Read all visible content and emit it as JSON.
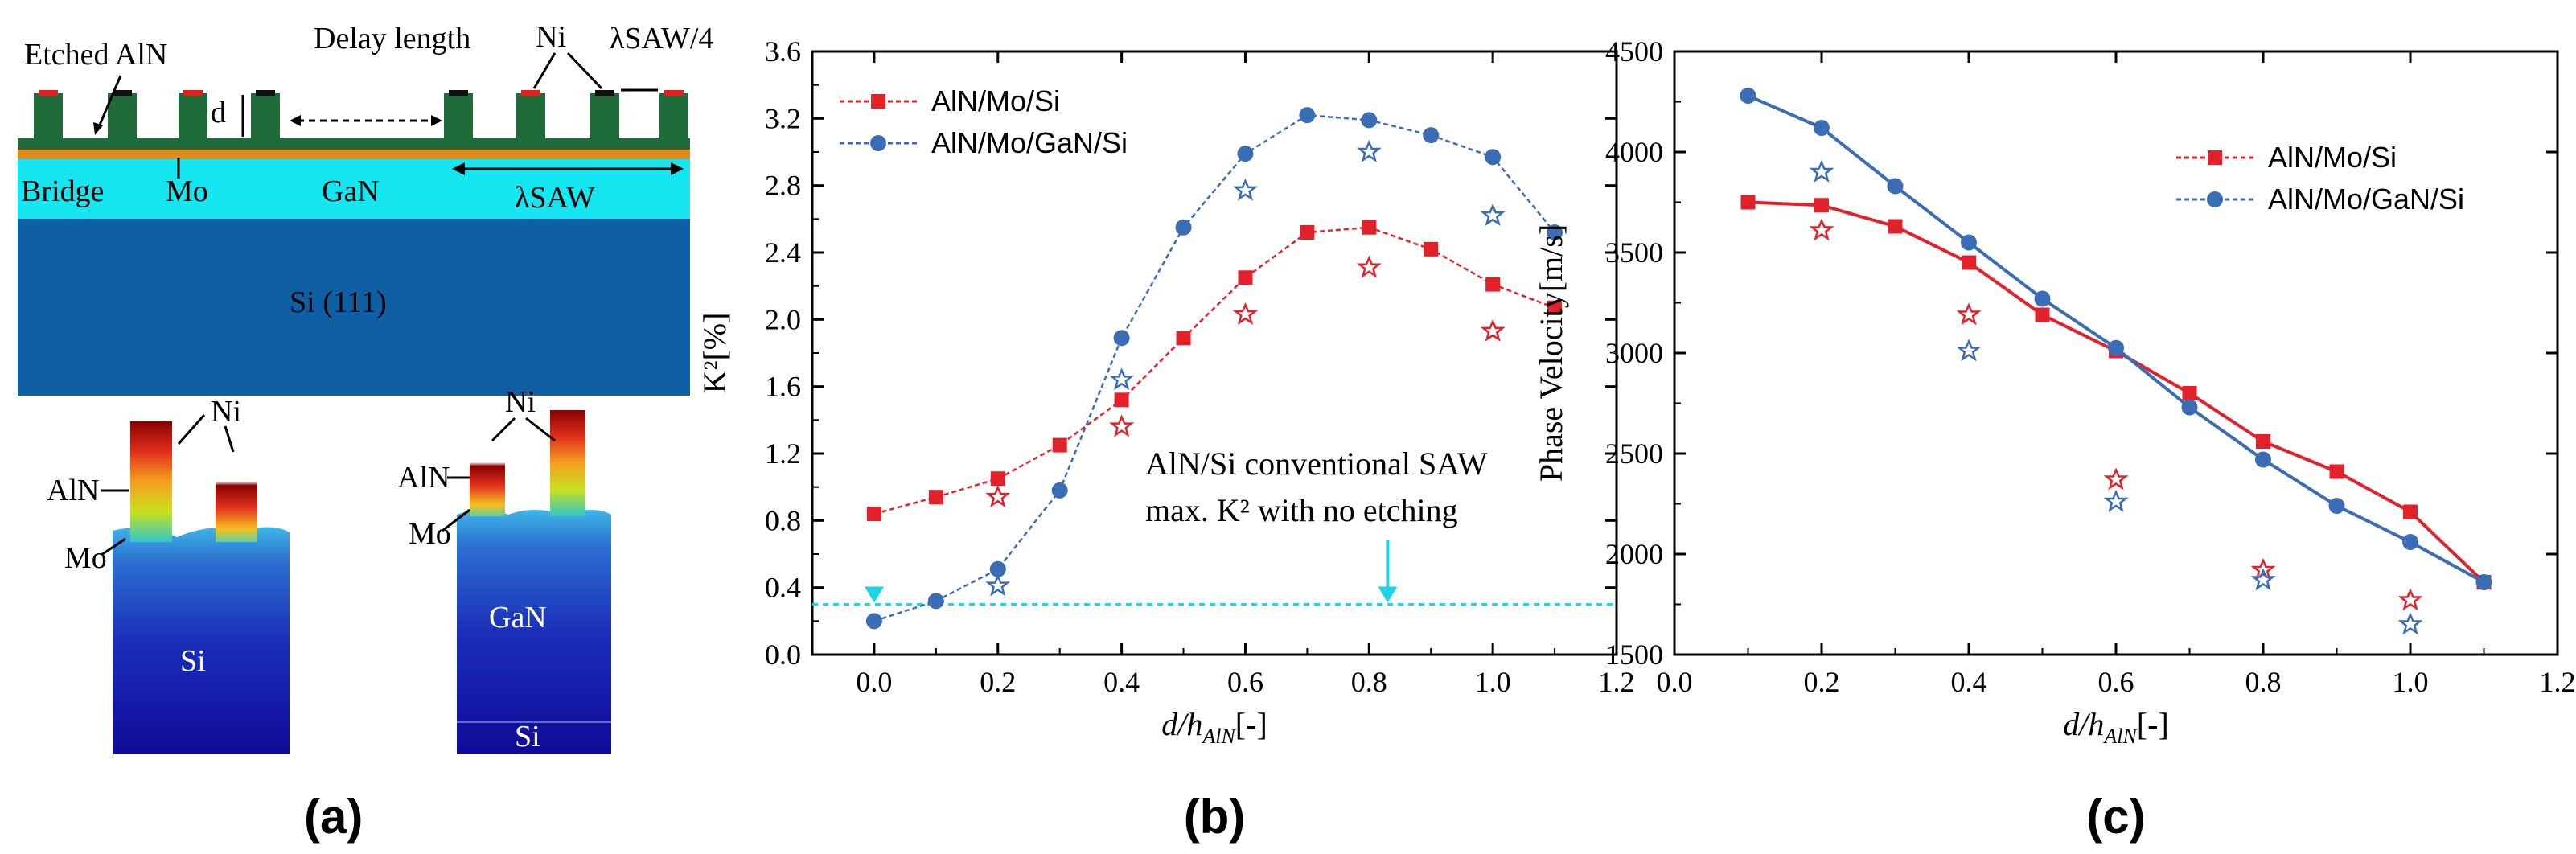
{
  "panel_a": {
    "caption": "(a)",
    "labels": {
      "etched_aln": "Etched AlN",
      "delay_length": "Delay length",
      "ni": "Ni",
      "lambda_quarter": "λSAW/4",
      "d": "d",
      "bridge": "Bridge",
      "mo": "Mo",
      "gan": "GaN",
      "lambda_saw": "λSAW",
      "si111": "Si (111)",
      "sim_ni_1": "Ni",
      "sim_aln_1": "AlN",
      "sim_mo_1": "Mo",
      "sim_si_1": "Si",
      "sim_ni_2": "Ni",
      "sim_aln_2": "AlN",
      "sim_mo_2": "Mo",
      "sim_gan_2": "GaN",
      "sim_si_2": "Si"
    },
    "colors": {
      "aln": "#1f6b3a",
      "ni": "#e0201c",
      "mo": "#e08a1c",
      "gan": "#16e6f0",
      "si": "#0e5fa3"
    }
  },
  "chart_data": [
    {
      "type": "line",
      "caption": "(b)",
      "xlabel": "d/hAlN[-]",
      "ylabel": "K²[%]",
      "xlim": [
        -0.1,
        1.2
      ],
      "ylim": [
        0.0,
        3.6
      ],
      "xticks": [
        "0.0",
        "0.2",
        "0.4",
        "0.6",
        "0.8",
        "1.0",
        "1.2"
      ],
      "yticks": [
        "0.0",
        "0.4",
        "0.8",
        "1.2",
        "1.6",
        "2.0",
        "2.4",
        "2.8",
        "3.2",
        "3.6"
      ],
      "series": [
        {
          "name": "AlN/Mo/Si",
          "color": "#e3212b",
          "marker": "square",
          "x": [
            0.0,
            0.1,
            0.2,
            0.3,
            0.4,
            0.5,
            0.6,
            0.7,
            0.8,
            0.9,
            1.0,
            1.1
          ],
          "y": [
            0.84,
            0.94,
            1.05,
            1.25,
            1.52,
            1.89,
            2.25,
            2.52,
            2.55,
            2.42,
            2.21,
            2.07
          ],
          "measured_x": [
            0.2,
            0.4,
            0.6,
            0.8,
            1.0
          ],
          "measured_y": [
            0.94,
            1.36,
            2.03,
            2.31,
            1.93
          ]
        },
        {
          "name": "AlN/Mo/GaN/Si",
          "color": "#3a6db5",
          "marker": "circle",
          "x": [
            0.0,
            0.1,
            0.2,
            0.3,
            0.4,
            0.5,
            0.6,
            0.7,
            0.8,
            0.9,
            1.0,
            1.1
          ],
          "y": [
            0.2,
            0.32,
            0.51,
            0.98,
            1.89,
            2.55,
            2.99,
            3.22,
            3.19,
            3.1,
            2.97,
            2.52
          ],
          "measured_x": [
            0.2,
            0.4,
            0.6,
            0.8,
            1.0
          ],
          "measured_y": [
            0.41,
            1.64,
            2.77,
            3.0,
            2.62
          ]
        }
      ],
      "reference_line": {
        "y": 0.3,
        "color": "#22d3e6"
      },
      "annotation_line1": "AlN/Si conventional SAW",
      "annotation_line2": "max. K² with no etching"
    },
    {
      "type": "line",
      "caption": "(c)",
      "xlabel": "d/hAlN[-]",
      "ylabel": "Phase Velocity[m/s]",
      "xlim": [
        0.0,
        1.2
      ],
      "ylim": [
        1500,
        4500
      ],
      "xticks": [
        "0.0",
        "0.2",
        "0.4",
        "0.6",
        "0.8",
        "1.0",
        "1.2"
      ],
      "yticks": [
        "1500",
        "2000",
        "2500",
        "3000",
        "3500",
        "4000",
        "4500"
      ],
      "series": [
        {
          "name": "AlN/Mo/Si",
          "color": "#e3212b",
          "marker": "square",
          "x": [
            0.1,
            0.2,
            0.3,
            0.4,
            0.5,
            0.6,
            0.7,
            0.8,
            0.9,
            1.0,
            1.1
          ],
          "y": [
            3750,
            3735,
            3630,
            3450,
            3190,
            3010,
            2800,
            2560,
            2410,
            2210,
            1860
          ],
          "measured_x": [
            0.2,
            0.4,
            0.6,
            0.8,
            1.0
          ],
          "measured_y": [
            3610,
            3190,
            2370,
            1920,
            1770
          ]
        },
        {
          "name": "AlN/Mo/GaN/Si",
          "color": "#3a6db5",
          "marker": "circle",
          "x": [
            0.1,
            0.2,
            0.3,
            0.4,
            0.5,
            0.6,
            0.7,
            0.8,
            0.9,
            1.0,
            1.1
          ],
          "y": [
            4280,
            4120,
            3830,
            3550,
            3270,
            3025,
            2730,
            2470,
            2240,
            2060,
            1860
          ],
          "measured_x": [
            0.2,
            0.4,
            0.6,
            0.8,
            1.0
          ],
          "measured_y": [
            3900,
            3010,
            2260,
            1870,
            1650
          ]
        }
      ]
    }
  ]
}
